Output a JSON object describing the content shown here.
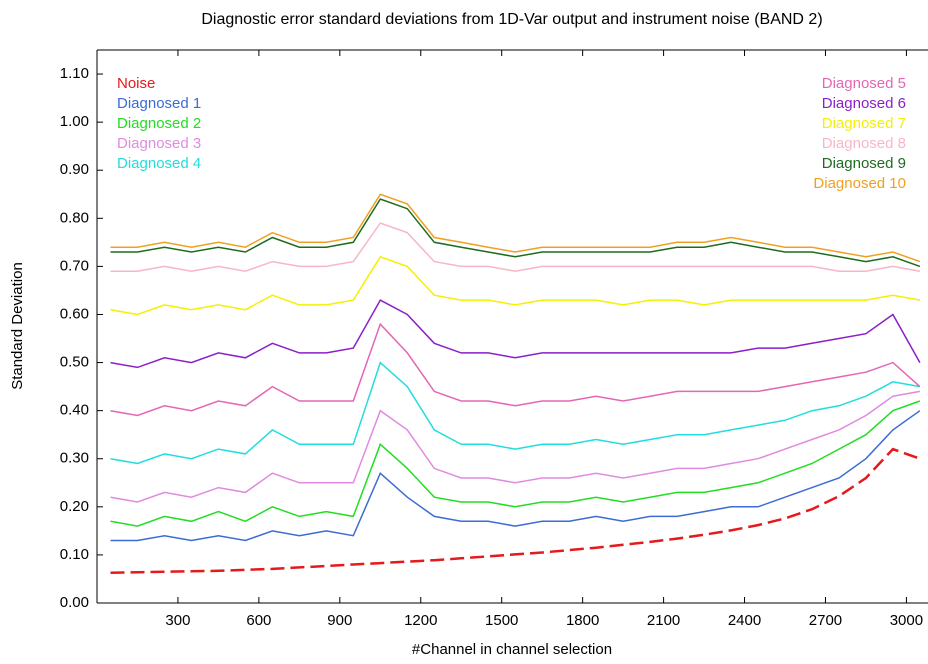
{
  "chart_data": {
    "type": "line",
    "title": "Diagnostic error standard deviations from 1D-Var output and instrument noise (BAND 2)",
    "x_label": "#Channel in channel selection",
    "y_label": "Standard Deviation",
    "x": [
      50,
      150,
      250,
      350,
      450,
      550,
      650,
      750,
      850,
      950,
      1050,
      1150,
      1250,
      1350,
      1450,
      1550,
      1650,
      1750,
      1850,
      1950,
      2050,
      2150,
      2250,
      2350,
      2450,
      2550,
      2650,
      2750,
      2850,
      2950,
      3050
    ],
    "xlim": [
      0,
      3080
    ],
    "ylim": [
      0,
      1.15
    ],
    "xticks": [
      300,
      600,
      900,
      1200,
      1500,
      1800,
      2100,
      2400,
      2700,
      3000
    ],
    "yticks": [
      {
        "value": 0,
        "label": "0.00"
      },
      {
        "value": 0.1,
        "label": "0.10"
      },
      {
        "value": 0.2,
        "label": "0.20"
      },
      {
        "value": 0.3,
        "label": "0.30"
      },
      {
        "value": 0.4,
        "label": "0.40"
      },
      {
        "value": 0.5,
        "label": "0.50"
      },
      {
        "value": 0.6,
        "label": "0.60"
      },
      {
        "value": 0.7,
        "label": "0.70"
      },
      {
        "value": 0.8,
        "label": "0.80"
      },
      {
        "value": 0.9,
        "label": "0.90"
      },
      {
        "value": 1.0,
        "label": "1.00"
      },
      {
        "value": 1.1,
        "label": "1.10"
      }
    ],
    "series": [
      {
        "name": "Noise",
        "color": "#e41a1c",
        "dashed": true,
        "values": [
          0.063,
          0.064,
          0.065,
          0.066,
          0.067,
          0.069,
          0.071,
          0.074,
          0.077,
          0.08,
          0.083,
          0.086,
          0.089,
          0.093,
          0.097,
          0.101,
          0.105,
          0.11,
          0.115,
          0.121,
          0.127,
          0.134,
          0.142,
          0.151,
          0.162,
          0.176,
          0.195,
          0.222,
          0.26,
          0.32,
          0.3
        ]
      },
      {
        "name": "Diagnosed 1",
        "color": "#3b6cd4",
        "values": [
          0.13,
          0.13,
          0.14,
          0.13,
          0.14,
          0.13,
          0.15,
          0.14,
          0.15,
          0.14,
          0.27,
          0.22,
          0.18,
          0.17,
          0.17,
          0.16,
          0.17,
          0.17,
          0.18,
          0.17,
          0.18,
          0.18,
          0.19,
          0.2,
          0.2,
          0.22,
          0.24,
          0.26,
          0.3,
          0.36,
          0.4
        ]
      },
      {
        "name": "Diagnosed 2",
        "color": "#22dd22",
        "values": [
          0.17,
          0.16,
          0.18,
          0.17,
          0.19,
          0.17,
          0.2,
          0.18,
          0.19,
          0.18,
          0.33,
          0.28,
          0.22,
          0.21,
          0.21,
          0.2,
          0.21,
          0.21,
          0.22,
          0.21,
          0.22,
          0.23,
          0.23,
          0.24,
          0.25,
          0.27,
          0.29,
          0.32,
          0.35,
          0.4,
          0.42
        ]
      },
      {
        "name": "Diagnosed 3",
        "color": "#e08be0",
        "values": [
          0.22,
          0.21,
          0.23,
          0.22,
          0.24,
          0.23,
          0.27,
          0.25,
          0.25,
          0.25,
          0.4,
          0.36,
          0.28,
          0.26,
          0.26,
          0.25,
          0.26,
          0.26,
          0.27,
          0.26,
          0.27,
          0.28,
          0.28,
          0.29,
          0.3,
          0.32,
          0.34,
          0.36,
          0.39,
          0.43,
          0.44
        ]
      },
      {
        "name": "Diagnosed 4",
        "color": "#22dddd",
        "values": [
          0.3,
          0.29,
          0.31,
          0.3,
          0.32,
          0.31,
          0.36,
          0.33,
          0.33,
          0.33,
          0.5,
          0.45,
          0.36,
          0.33,
          0.33,
          0.32,
          0.33,
          0.33,
          0.34,
          0.33,
          0.34,
          0.35,
          0.35,
          0.36,
          0.37,
          0.38,
          0.4,
          0.41,
          0.43,
          0.46,
          0.45
        ]
      },
      {
        "name": "Diagnosed 5",
        "color": "#e466b4",
        "values": [
          0.4,
          0.39,
          0.41,
          0.4,
          0.42,
          0.41,
          0.45,
          0.42,
          0.42,
          0.42,
          0.58,
          0.52,
          0.44,
          0.42,
          0.42,
          0.41,
          0.42,
          0.42,
          0.43,
          0.42,
          0.43,
          0.44,
          0.44,
          0.44,
          0.44,
          0.45,
          0.46,
          0.47,
          0.48,
          0.5,
          0.45
        ]
      },
      {
        "name": "Diagnosed 6",
        "color": "#8a1fc8",
        "values": [
          0.5,
          0.49,
          0.51,
          0.5,
          0.52,
          0.51,
          0.54,
          0.52,
          0.52,
          0.53,
          0.63,
          0.6,
          0.54,
          0.52,
          0.52,
          0.51,
          0.52,
          0.52,
          0.52,
          0.52,
          0.52,
          0.52,
          0.52,
          0.52,
          0.53,
          0.53,
          0.54,
          0.55,
          0.56,
          0.6,
          0.5
        ]
      },
      {
        "name": "Diagnosed 7",
        "color": "#f5f000",
        "values": [
          0.61,
          0.6,
          0.62,
          0.61,
          0.62,
          0.61,
          0.64,
          0.62,
          0.62,
          0.63,
          0.72,
          0.7,
          0.64,
          0.63,
          0.63,
          0.62,
          0.63,
          0.63,
          0.63,
          0.62,
          0.63,
          0.63,
          0.62,
          0.63,
          0.63,
          0.63,
          0.63,
          0.63,
          0.63,
          0.64,
          0.63
        ]
      },
      {
        "name": "Diagnosed 8",
        "color": "#f7b6c8",
        "values": [
          0.69,
          0.69,
          0.7,
          0.69,
          0.7,
          0.69,
          0.71,
          0.7,
          0.7,
          0.71,
          0.79,
          0.77,
          0.71,
          0.7,
          0.7,
          0.69,
          0.7,
          0.7,
          0.7,
          0.7,
          0.7,
          0.7,
          0.7,
          0.7,
          0.7,
          0.7,
          0.7,
          0.69,
          0.69,
          0.7,
          0.69
        ]
      },
      {
        "name": "Diagnosed 9",
        "color": "#1e6b1e",
        "values": [
          0.73,
          0.73,
          0.74,
          0.73,
          0.74,
          0.73,
          0.76,
          0.74,
          0.74,
          0.75,
          0.84,
          0.82,
          0.75,
          0.74,
          0.73,
          0.72,
          0.73,
          0.73,
          0.73,
          0.73,
          0.73,
          0.74,
          0.74,
          0.75,
          0.74,
          0.73,
          0.73,
          0.72,
          0.71,
          0.72,
          0.7
        ]
      },
      {
        "name": "Diagnosed 10",
        "color": "#f0a020",
        "values": [
          0.74,
          0.74,
          0.75,
          0.74,
          0.75,
          0.74,
          0.77,
          0.75,
          0.75,
          0.76,
          0.85,
          0.83,
          0.76,
          0.75,
          0.74,
          0.73,
          0.74,
          0.74,
          0.74,
          0.74,
          0.74,
          0.75,
          0.75,
          0.76,
          0.75,
          0.74,
          0.74,
          0.73,
          0.72,
          0.73,
          0.71
        ]
      }
    ]
  }
}
